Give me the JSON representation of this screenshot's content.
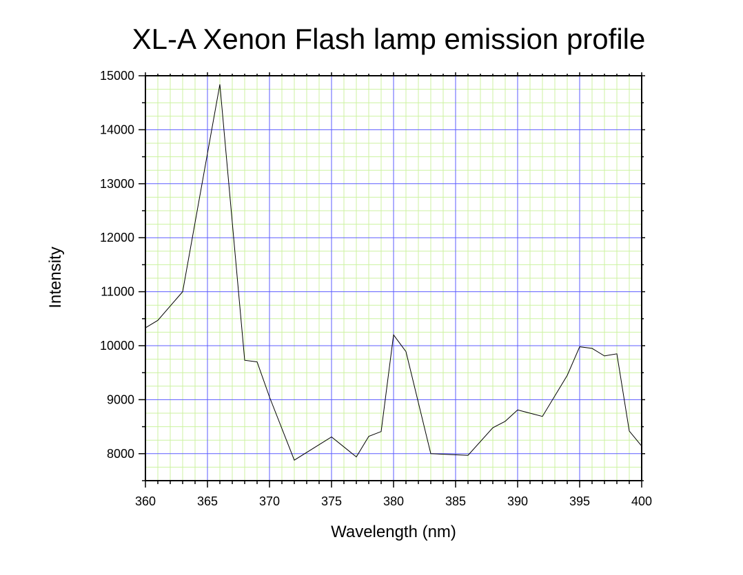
{
  "chart_data": {
    "type": "line",
    "title": "XL-A Xenon Flash lamp emission profile",
    "xlabel": "Wavelength (nm)",
    "ylabel": "Intensity",
    "xlim": [
      360,
      400
    ],
    "ylim": [
      7500,
      15000
    ],
    "x_ticks": [
      "360",
      "365",
      "370",
      "375",
      "380",
      "385",
      "390",
      "395",
      "400"
    ],
    "y_ticks": [
      "8000",
      "9000",
      "10000",
      "11000",
      "12000",
      "13000",
      "14000",
      "15000"
    ],
    "grid": true,
    "colors": {
      "major_grid": "#5b5bff",
      "minor_grid": "#ccf2a0",
      "line": "#000000"
    },
    "series": [
      {
        "x": [
          360,
          361,
          363,
          366,
          368,
          369,
          370,
          372,
          375,
          377,
          378,
          379,
          380,
          381,
          383,
          386,
          388,
          389,
          390,
          392,
          394,
          395,
          396,
          397,
          398,
          399,
          400
        ],
        "y": [
          10330,
          10470,
          11000,
          14840,
          9730,
          9700,
          9050,
          7880,
          8310,
          7940,
          8320,
          8410,
          10200,
          9890,
          8000,
          7970,
          8480,
          8600,
          8810,
          8690,
          9450,
          9980,
          9950,
          9810,
          9850,
          8420,
          8140
        ]
      }
    ]
  }
}
